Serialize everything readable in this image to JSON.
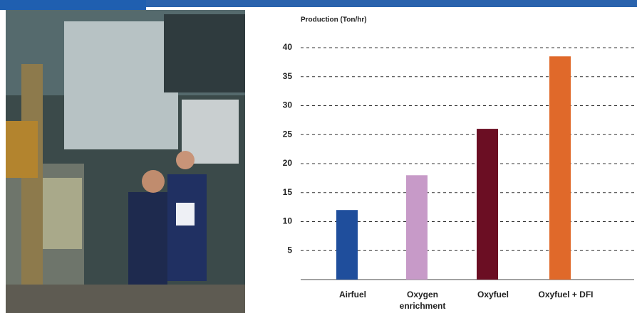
{
  "chart_data": {
    "type": "bar",
    "title": "Production (Ton/hr)",
    "categories": [
      "Airfuel",
      "Oxygen enrichment",
      "Oxyfuel",
      "Oxyfuel + DFI"
    ],
    "values": [
      12,
      18,
      26,
      38.5
    ],
    "colors": [
      "#1f4e9c",
      "#c79ac8",
      "#6b0e23",
      "#e0692a"
    ],
    "ylim": [
      0,
      40
    ],
    "yticks": [
      5,
      10,
      15,
      20,
      25,
      30,
      35,
      40
    ],
    "grid": true
  }
}
